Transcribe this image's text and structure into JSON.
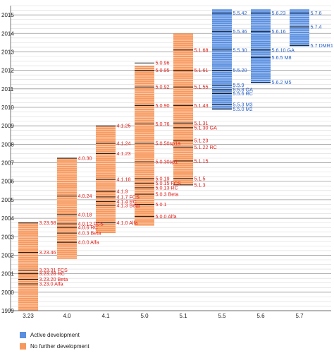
{
  "chart_data": {
    "type": "bar",
    "y_axis": {
      "min": 1999,
      "max": 2015.5,
      "ticks": [
        1999,
        2000,
        2001,
        2002,
        2003,
        2004,
        2005,
        2006,
        2007,
        2008,
        2009,
        2010,
        2011,
        2012,
        2013,
        2014,
        2015
      ]
    },
    "grid": true,
    "colors": {
      "active": "#5a8fe0",
      "inactive": "#f7995e",
      "active_text": "#2a62c8",
      "inactive_text": "#e0201b"
    },
    "legend": [
      {
        "key": "active",
        "label": "Active development"
      },
      {
        "key": "inactive",
        "label": "No further development"
      }
    ],
    "versions": [
      {
        "name": "3.23",
        "status": "inactive",
        "start": 1999.0,
        "end": 2003.75,
        "releases": [
          {
            "label": "3.23.0 Alfa",
            "date": 2000.45
          },
          {
            "label": "3.23.20 Beta",
            "date": 2000.7
          },
          {
            "label": "3.23.28 RC",
            "date": 2001.0
          },
          {
            "label": "3.23.31 FCS",
            "date": 2001.2
          },
          {
            "label": "3.23.46",
            "date": 2002.15
          },
          {
            "label": "3.23.58",
            "date": 2003.75
          }
        ]
      },
      {
        "name": "4.0",
        "status": "inactive",
        "start": 2001.8,
        "end": 2007.25,
        "releases": [
          {
            "label": "4.0.0 Alfa",
            "date": 2002.7
          },
          {
            "label": "4.0.3 Beta",
            "date": 2003.2
          },
          {
            "label": "4.0.6 RC",
            "date": 2003.5
          },
          {
            "label": "4.0.12 FCS",
            "date": 2003.7
          },
          {
            "label": "4.0.18",
            "date": 2004.2
          },
          {
            "label": "4.0.24",
            "date": 2005.2
          },
          {
            "label": "4.0.30",
            "date": 2007.25
          }
        ]
      },
      {
        "name": "4.1",
        "status": "inactive",
        "start": 2003.2,
        "end": 2009.0,
        "releases": [
          {
            "label": "4.1.0 Alfa",
            "date": 2003.75
          },
          {
            "label": "4.1.3 Beta",
            "date": 2004.7
          },
          {
            "label": "4.1.4 RC",
            "date": 2004.9
          },
          {
            "label": "4.1.7 FCS",
            "date": 2005.15
          },
          {
            "label": "4.1.9",
            "date": 2005.45
          },
          {
            "label": "4.1.18",
            "date": 2006.1
          },
          {
            "label": "4.1.23",
            "date": 2007.5
          },
          {
            "label": "4.1.24",
            "date": 2008.05
          },
          {
            "label": "4.1.25",
            "date": 2009.0
          }
        ]
      },
      {
        "name": "5.0",
        "status": "inactive",
        "start": 2003.6,
        "end": 2012.25,
        "releases": [
          {
            "label": "5.0.0 Alfa",
            "date": 2004.1
          },
          {
            "label": "5.0.1",
            "date": 2004.75
          },
          {
            "label": "5.0.3 Beta",
            "date": 2005.3
          },
          {
            "label": "5.0.13 RC",
            "date": 2005.65
          },
          {
            "label": "5.0.15 FCS",
            "date": 2005.9
          },
          {
            "label": "5.0.19",
            "date": 2006.15
          },
          {
            "label": "5.0.30sp1",
            "date": 2007.05
          },
          {
            "label": "5.0.50sp1a",
            "date": 2008.05
          },
          {
            "label": "5.0.76",
            "date": 2009.1
          },
          {
            "label": "5.0.90",
            "date": 2010.1
          },
          {
            "label": "5.0.92",
            "date": 2011.1
          },
          {
            "label": "5.0.95",
            "date": 2012.0
          },
          {
            "label": "5.0.96",
            "date": 2012.4
          }
        ]
      },
      {
        "name": "5.1",
        "status": "inactive",
        "start": 2005.8,
        "end": 2014.0,
        "releases": [
          {
            "label": "5.1.3",
            "date": 2005.8
          },
          {
            "label": "5.1.5",
            "date": 2006.15
          },
          {
            "label": "5.1.15",
            "date": 2007.1
          },
          {
            "label": "5.1.22 RC",
            "date": 2007.85
          },
          {
            "label": "5.1.23",
            "date": 2008.2
          },
          {
            "label": "5.1.30 GA",
            "date": 2008.9
          },
          {
            "label": "5.1.31",
            "date": 2009.15
          },
          {
            "label": "5.1.43",
            "date": 2010.1
          },
          {
            "label": "5.1.55",
            "date": 2011.1
          },
          {
            "label": "5.1.61",
            "date": 2012.0
          },
          {
            "label": "5.1.68",
            "date": 2013.1
          }
        ]
      },
      {
        "name": "5.5",
        "status": "active",
        "start": 2009.9,
        "end": 2015.3,
        "releases": [
          {
            "label": "5.5.0 M2",
            "date": 2009.9
          },
          {
            "label": "5.5.3 M3",
            "date": 2010.15
          },
          {
            "label": "5.5.6 RC",
            "date": 2010.75
          },
          {
            "label": "5.5.8 GA",
            "date": 2010.95
          },
          {
            "label": "5.5.9",
            "date": 2011.2
          },
          {
            "label": "5.5.20",
            "date": 2012.0
          },
          {
            "label": "5.5.30",
            "date": 2013.1
          },
          {
            "label": "5.5.36",
            "date": 2014.1
          },
          {
            "label": "5.5.42",
            "date": 2015.1
          }
        ]
      },
      {
        "name": "5.6",
        "status": "active",
        "start": 2011.3,
        "end": 2015.3,
        "releases": [
          {
            "label": "5.6.2 M5",
            "date": 2011.35
          },
          {
            "label": "5.6.5 M8",
            "date": 2012.7
          },
          {
            "label": "5.6.10 GA",
            "date": 2013.1
          },
          {
            "label": "5.6.16",
            "date": 2014.1
          },
          {
            "label": "5.6.23",
            "date": 2015.1
          }
        ]
      },
      {
        "name": "5.7",
        "status": "active",
        "start": 2013.3,
        "end": 2015.3,
        "releases": [
          {
            "label": "5.7 DMR1",
            "date": 2013.35
          },
          {
            "label": "5.7.4",
            "date": 2014.35
          },
          {
            "label": "5.7.6",
            "date": 2015.1
          }
        ]
      }
    ]
  }
}
